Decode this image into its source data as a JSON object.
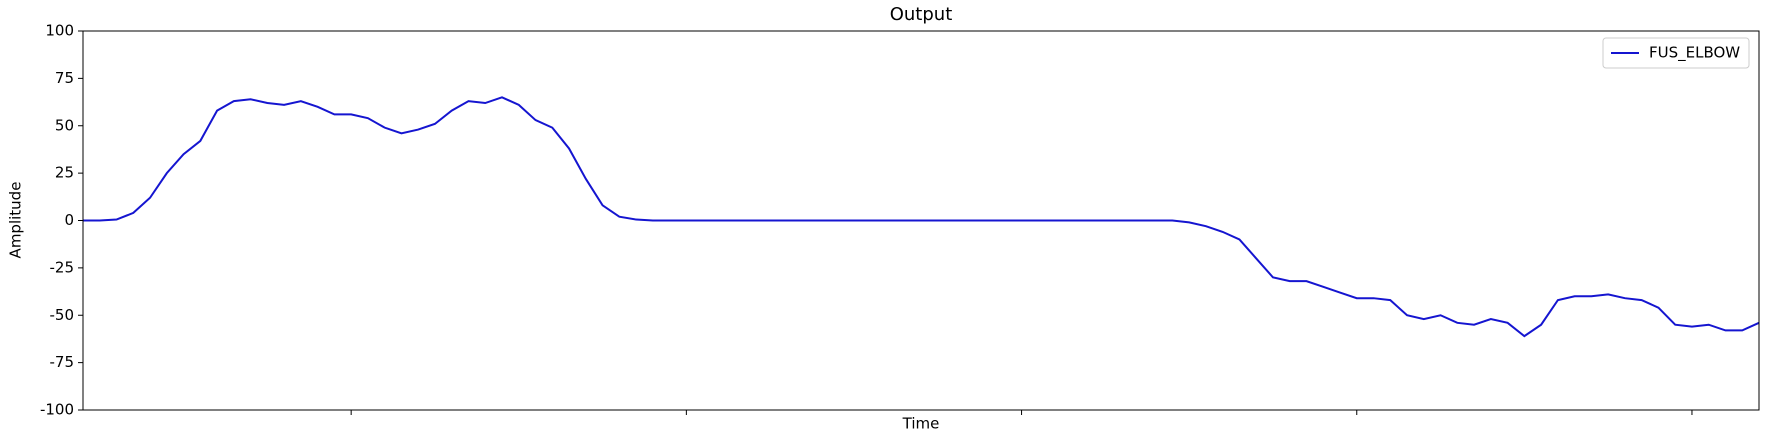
{
  "chart_data": {
    "type": "line",
    "title": "Output",
    "x_label": "Time",
    "y_label": "Amplitude",
    "x": [
      0,
      1,
      2,
      3,
      4,
      5,
      6,
      7,
      8,
      9,
      10,
      11,
      12,
      13,
      14,
      15,
      16,
      17,
      18,
      19,
      20,
      21,
      22,
      23,
      24,
      25,
      26,
      27,
      28,
      29,
      30,
      31,
      32,
      33,
      34,
      35,
      36,
      37,
      38,
      39,
      40,
      41,
      42,
      43,
      44,
      45,
      46,
      47,
      48,
      49,
      50,
      51,
      52,
      53,
      54,
      55,
      56,
      57,
      58,
      59,
      60,
      61,
      62,
      63,
      64,
      65,
      66,
      67,
      68,
      69,
      70,
      71,
      72,
      73,
      74,
      75,
      76,
      77,
      78,
      79,
      80,
      81,
      82,
      83,
      84,
      85,
      86,
      87,
      88,
      89,
      90,
      91,
      92,
      93,
      94,
      95,
      96,
      97,
      98,
      99,
      100
    ],
    "series": [
      {
        "name": "FUS_ELBOW",
        "color": "#1515d0",
        "values": [
          0,
          0,
          0.5,
          4,
          12,
          25,
          35,
          42,
          58,
          63,
          64,
          62,
          61,
          63,
          60,
          56,
          56,
          54,
          49,
          46,
          48,
          51,
          58,
          63,
          62,
          65,
          61,
          53,
          49,
          38,
          22,
          8,
          2,
          0.5,
          0,
          0,
          0,
          0,
          0,
          0,
          0,
          0,
          0,
          0,
          0,
          0,
          0,
          0,
          0,
          0,
          0,
          0,
          0,
          0,
          0,
          0,
          0,
          0,
          0,
          0,
          0,
          0,
          0,
          0,
          0,
          0,
          -1,
          -3,
          -6,
          -10,
          -20,
          -30,
          -32,
          -32,
          -35,
          -38,
          -41,
          -41,
          -42,
          -50,
          -52,
          -50,
          -54,
          -55,
          -52,
          -54,
          -61,
          -55,
          -42,
          -40,
          -40,
          -39,
          -41,
          -42,
          -46,
          -55,
          -56,
          -55,
          -58,
          -58,
          -54
        ]
      }
    ],
    "xlim": [
      0,
      100
    ],
    "xticks": [
      16,
      36,
      56,
      76,
      96
    ],
    "ylim": [
      -100,
      100
    ],
    "yticks": [
      -100,
      -75,
      -50,
      -25,
      0,
      25,
      50,
      75,
      100
    ],
    "legend": "upper right"
  }
}
